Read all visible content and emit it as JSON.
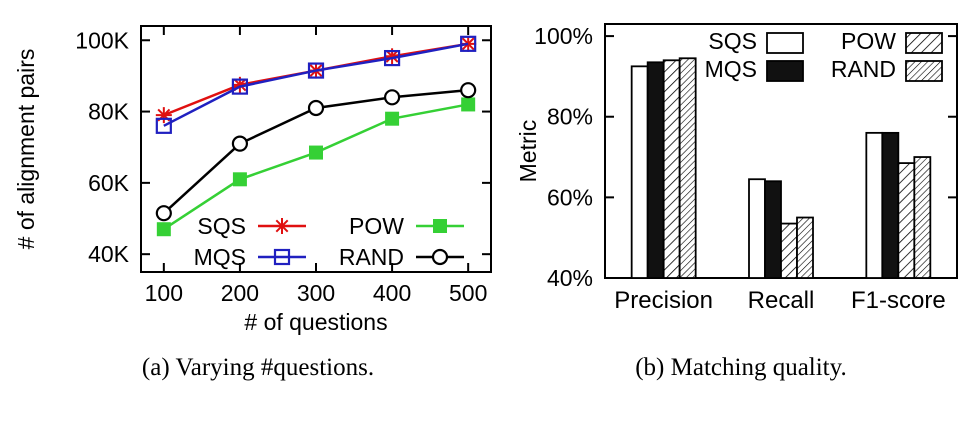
{
  "page": {
    "background": "#ffffff",
    "frame_color": "#000000"
  },
  "chart_data": [
    {
      "type": "line",
      "caption": "(a) Varying #questions.",
      "xlabel": "# of questions",
      "ylabel": "# of alignment pairs",
      "x": [
        100,
        200,
        300,
        400,
        500
      ],
      "xlim": [
        70,
        530
      ],
      "ylim": [
        35,
        104
      ],
      "yticks": [
        40,
        60,
        80,
        100
      ],
      "ytick_labels": [
        "40K",
        "60K",
        "80K",
        "100K"
      ],
      "unit": "K pairs",
      "grid": false,
      "legend_position": "inside-bottom-right",
      "series": [
        {
          "name": "SQS",
          "color": "#e01010",
          "marker": "star",
          "values": [
            79,
            87.5,
            91.5,
            95.5,
            99
          ]
        },
        {
          "name": "MQS",
          "color": "#2020c0",
          "marker": "open-square",
          "values": [
            76,
            87,
            91.5,
            95,
            99
          ]
        },
        {
          "name": "POW",
          "color": "#35d035",
          "marker": "filled-square",
          "values": [
            47,
            61,
            68.5,
            78,
            82
          ]
        },
        {
          "name": "RAND",
          "color": "#000000",
          "marker": "open-circle",
          "values": [
            51.5,
            71,
            81,
            84,
            86
          ]
        }
      ]
    },
    {
      "type": "bar",
      "caption": "(b) Matching quality.",
      "xlabel": "",
      "ylabel": "Metric",
      "categories": [
        "Precision",
        "Recall",
        "F1-score"
      ],
      "ylim": [
        40,
        103
      ],
      "yticks": [
        40,
        60,
        80,
        100
      ],
      "ytick_labels": [
        "40%",
        "60%",
        "80%",
        "100%"
      ],
      "grid": false,
      "legend_position": "inside-top-right",
      "series": [
        {
          "name": "SQS",
          "fill": "solid-white",
          "values": [
            92.5,
            64.5,
            76
          ]
        },
        {
          "name": "MQS",
          "fill": "solid-black",
          "values": [
            93.5,
            64,
            76
          ]
        },
        {
          "name": "POW",
          "fill": "hatch",
          "values": [
            94,
            53.5,
            68.5
          ]
        },
        {
          "name": "RAND",
          "fill": "hatch-dense",
          "values": [
            94.5,
            55,
            70
          ]
        }
      ]
    }
  ]
}
